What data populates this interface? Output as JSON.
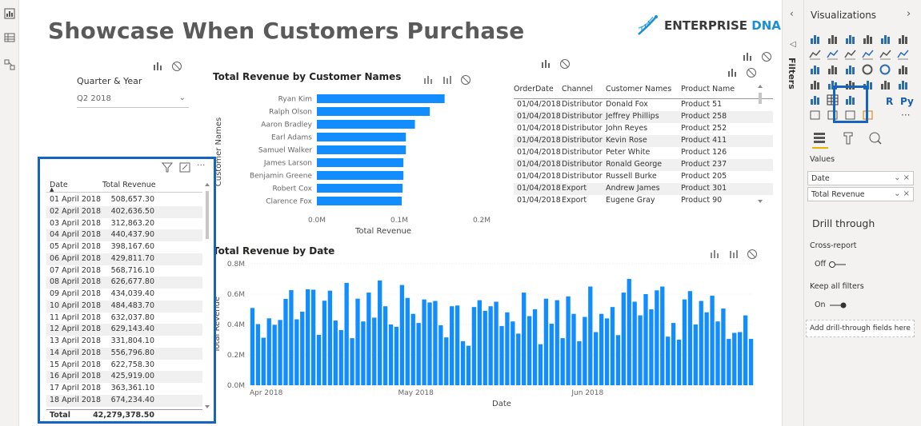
{
  "report": {
    "title": "Showcase When Customers Purchase",
    "brand_a": "ENTERPRISE",
    "brand_b": "DNA"
  },
  "slicer": {
    "label": "Quarter & Year",
    "value": "Q2 2018"
  },
  "customer_chart": {
    "title": "Total Revenue by Customer Names",
    "xlabel": "Total Revenue",
    "ylabel": "Customer Names",
    "xticks": [
      "0.0M",
      "0.1M",
      "0.2M"
    ]
  },
  "date_chart": {
    "title": "Total Revenue by Date",
    "xlabel": "Date",
    "ylabel": "Total Revenue",
    "yticks": [
      "0.0M",
      "0.2M",
      "0.4M",
      "0.6M",
      "0.8M"
    ],
    "xticks": [
      "Apr 2018",
      "May 2018",
      "Jun 2018"
    ]
  },
  "chart_data": [
    {
      "type": "bar",
      "orientation": "horizontal",
      "title": "Total Revenue by Customer Names",
      "xlabel": "Total Revenue",
      "ylabel": "Customer Names",
      "categories": [
        "Ryan Kim",
        "Ralph Olson",
        "Aaron Bradley",
        "Earl Adams",
        "Samuel Walker",
        "James Larson",
        "Benjamin Greene",
        "Robert Cox",
        "Clarence Fox"
      ],
      "values": [
        155000,
        137000,
        119000,
        108000,
        108000,
        105000,
        105000,
        104000,
        103000
      ],
      "xlim": [
        0,
        200000
      ]
    },
    {
      "type": "bar",
      "title": "Total Revenue by Date",
      "xlabel": "Date",
      "ylabel": "Total Revenue",
      "x_range": [
        "2018-04-01",
        "2018-06-30"
      ],
      "values": [
        508657,
        402637,
        312863,
        440438,
        398168,
        429812,
        568716,
        626678,
        434039,
        484484,
        632038,
        629143,
        331804,
        556797,
        622758,
        425919,
        363361,
        674234,
        310000,
        570000,
        420000,
        610000,
        445000,
        690000,
        520000,
        400000,
        385000,
        660000,
        575000,
        470000,
        410000,
        565000,
        545000,
        555000,
        395000,
        315000,
        520000,
        525000,
        290000,
        260000,
        515000,
        560000,
        490000,
        520000,
        550000,
        390000,
        480000,
        420000,
        340000,
        610000,
        455000,
        500000,
        270000,
        570000,
        405000,
        560000,
        310000,
        585000,
        470000,
        290000,
        450000,
        650000,
        350000,
        470000,
        440000,
        515000,
        330000,
        610000,
        700000,
        550000,
        460000,
        600000,
        500000,
        625000,
        650000,
        320000,
        410000,
        300000,
        565000,
        620000,
        400000,
        555000,
        480000,
        590000,
        420000,
        505000,
        305000,
        345000,
        350000,
        460000,
        305000
      ],
      "ylim": [
        0,
        800000
      ]
    }
  ],
  "date_table": {
    "headers": [
      "Date",
      "Total Revenue"
    ],
    "rows": [
      [
        "01 April 2018",
        "508,657.30"
      ],
      [
        "02 April 2018",
        "402,636.50"
      ],
      [
        "03 April 2018",
        "312,863.20"
      ],
      [
        "04 April 2018",
        "440,437.90"
      ],
      [
        "05 April 2018",
        "398,167.60"
      ],
      [
        "06 April 2018",
        "429,811.70"
      ],
      [
        "07 April 2018",
        "568,716.10"
      ],
      [
        "08 April 2018",
        "626,677.80"
      ],
      [
        "09 April 2018",
        "434,039.40"
      ],
      [
        "10 April 2018",
        "484,483.70"
      ],
      [
        "11 April 2018",
        "632,037.80"
      ],
      [
        "12 April 2018",
        "629,143.40"
      ],
      [
        "13 April 2018",
        "331,804.10"
      ],
      [
        "14 April 2018",
        "556,796.80"
      ],
      [
        "15 April 2018",
        "622,758.30"
      ],
      [
        "16 April 2018",
        "425,919.00"
      ],
      [
        "17 April 2018",
        "363,361.10"
      ],
      [
        "18 April 2018",
        "674,234.40"
      ]
    ],
    "total_label": "Total",
    "total_value": "42,279,378.50"
  },
  "order_table": {
    "headers": [
      "OrderDate",
      "Channel",
      "Customer Names",
      "Product Name"
    ],
    "rows": [
      [
        "01/04/2018",
        "Distributor",
        "Donald Fox",
        "Product 51"
      ],
      [
        "01/04/2018",
        "Distributor",
        "Jeffrey Phillips",
        "Product 258"
      ],
      [
        "01/04/2018",
        "Distributor",
        "John Reyes",
        "Product 252"
      ],
      [
        "01/04/2018",
        "Distributor",
        "Kevin Rose",
        "Product 411"
      ],
      [
        "01/04/2018",
        "Distributor",
        "Peter White",
        "Product 126"
      ],
      [
        "01/04/2018",
        "Distributor",
        "Ronald George",
        "Product 237"
      ],
      [
        "01/04/2018",
        "Distributor",
        "Russell Burke",
        "Product 205"
      ],
      [
        "01/04/2018",
        "Export",
        "Andrew James",
        "Product 301"
      ],
      [
        "01/04/2018",
        "Export",
        "Eugene Gray",
        "Product 90"
      ]
    ]
  },
  "panes": {
    "filters_label": "Filters",
    "viz_title": "Visualizations",
    "values_label": "Values",
    "fields": [
      "Date",
      "Total Revenue"
    ],
    "drill_title": "Drill through",
    "cross_report": "Cross-report",
    "cross_report_state": "Off",
    "keep_filters": "Keep all filters",
    "keep_filters_state": "On",
    "add_drill": "Add drill-through fields here",
    "r_label": "R",
    "py_label": "Py",
    "more_label": "···"
  },
  "colors": {
    "bar": "#118dff",
    "highlight": "#1565c0",
    "brand_accent": "#1a8fd6"
  }
}
